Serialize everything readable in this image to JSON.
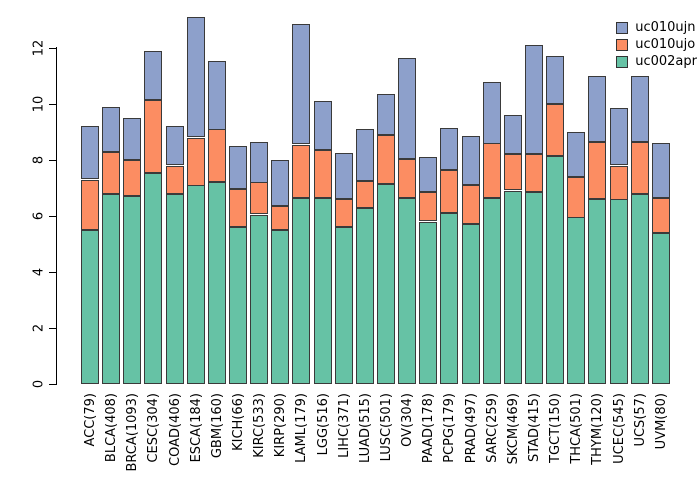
{
  "chart_data": {
    "type": "bar",
    "stacked": true,
    "title": "",
    "xlabel": "",
    "ylabel": "",
    "grid": false,
    "categories": [
      "ACC(79)",
      "BLCA(408)",
      "BRCA(1093)",
      "CESC(304)",
      "COAD(406)",
      "ESCA(184)",
      "GBM(160)",
      "KICH(66)",
      "KIRC(533)",
      "KIRP(290)",
      "LAML(179)",
      "LGG(516)",
      "LIHC(371)",
      "LUAD(515)",
      "LUSC(501)",
      "OV(304)",
      "PAAD(178)",
      "PCPG(179)",
      "PRAD(497)",
      "SARC(259)",
      "SKCM(469)",
      "STAD(415)",
      "TGCT(150)",
      "THCA(501)",
      "THYM(120)",
      "UCEC(545)",
      "UCS(57)",
      "UVM(80)"
    ],
    "series": [
      {
        "name": "uc002apr",
        "color": "#66C2A5",
        "values": [
          5.5,
          6.8,
          6.7,
          7.55,
          6.8,
          7.1,
          7.2,
          5.6,
          6.05,
          5.5,
          6.65,
          6.65,
          5.6,
          6.3,
          7.15,
          6.65,
          5.8,
          6.1,
          5.7,
          6.65,
          6.9,
          6.85,
          8.15,
          5.95,
          6.6,
          6.6,
          6.8,
          5.4
        ]
      },
      {
        "name": "uc010ujo",
        "color": "#FC8D62",
        "values": [
          1.8,
          1.5,
          1.3,
          2.6,
          1.0,
          1.7,
          1.9,
          1.35,
          1.15,
          0.85,
          1.9,
          1.7,
          1.0,
          0.95,
          1.75,
          1.4,
          1.05,
          1.55,
          1.4,
          1.95,
          1.3,
          1.35,
          1.85,
          1.45,
          2.05,
          1.2,
          1.85,
          1.25
        ]
      },
      {
        "name": "uc010ujn",
        "color": "#8DA0CB",
        "values": [
          1.9,
          1.6,
          1.5,
          1.75,
          1.4,
          4.3,
          2.45,
          1.55,
          1.45,
          1.65,
          4.3,
          1.75,
          1.65,
          1.85,
          1.45,
          3.6,
          1.25,
          1.5,
          1.75,
          2.2,
          1.4,
          3.9,
          1.7,
          1.6,
          2.35,
          2.05,
          2.35,
          1.95
        ]
      }
    ],
    "legend": {
      "position": "top-right",
      "entries": [
        {
          "label": "uc010ujn",
          "color": "#8DA0CB"
        },
        {
          "label": "uc010ujo",
          "color": "#FC8D62"
        },
        {
          "label": "uc002apr",
          "color": "#66C2A5"
        }
      ]
    },
    "y_axis": {
      "ticks": [
        0,
        2,
        4,
        6,
        8,
        10,
        12
      ],
      "ylim": [
        0,
        13.2
      ]
    }
  }
}
